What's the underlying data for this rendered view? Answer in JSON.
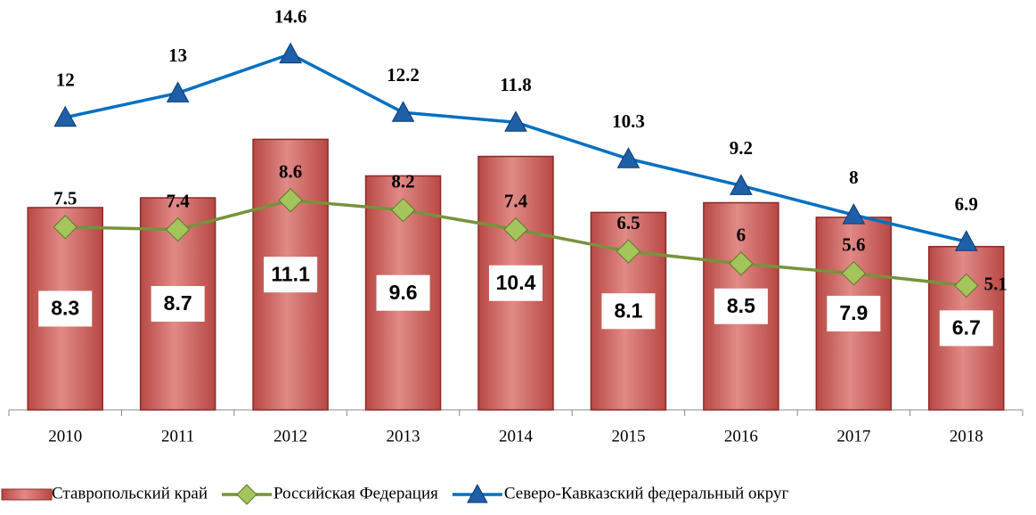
{
  "chart_data": {
    "type": "combo",
    "categories": [
      "2010",
      "2011",
      "2012",
      "2013",
      "2014",
      "2015",
      "2016",
      "2017",
      "2018"
    ],
    "series": [
      {
        "name": "Ставропольский край",
        "type": "bar",
        "color": "#d46461",
        "values": [
          8.3,
          8.7,
          11.1,
          9.6,
          10.4,
          8.1,
          8.5,
          7.9,
          6.7
        ]
      },
      {
        "name": "Российская Федерация",
        "type": "line",
        "color": "#77933c",
        "values": [
          7.5,
          7.4,
          8.6,
          8.2,
          7.4,
          6.5,
          6.0,
          5.6,
          5.1
        ]
      },
      {
        "name": "Северо-Кавказский федеральный округ",
        "type": "line",
        "color": "#0070c0",
        "values": [
          12.0,
          13.0,
          14.6,
          12.2,
          11.8,
          10.3,
          9.2,
          8.0,
          6.9
        ]
      }
    ],
    "ylim": [
      0,
      17
    ]
  }
}
